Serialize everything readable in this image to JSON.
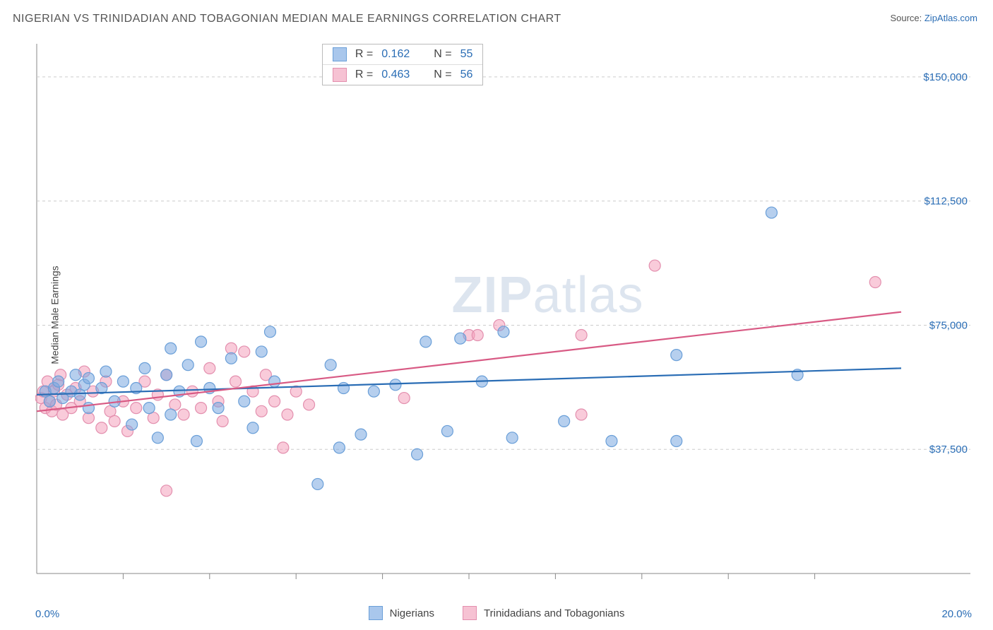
{
  "title": "NIGERIAN VS TRINIDADIAN AND TOBAGONIAN MEDIAN MALE EARNINGS CORRELATION CHART",
  "source_prefix": "Source: ",
  "source_link": "ZipAtlas.com",
  "ylabel": "Median Male Earnings",
  "watermark_zip": "ZIP",
  "watermark_atlas": "atlas",
  "xaxis": {
    "min": 0.0,
    "max": 20.0,
    "label_min": "0.0%",
    "label_max": "20.0%",
    "label_color": "#2a6db5",
    "tick_count": 10,
    "axis_color": "#888888"
  },
  "yaxis": {
    "min": 0,
    "max": 160000,
    "gridlines": [
      37500,
      75000,
      112500,
      150000
    ],
    "labels": [
      "$37,500",
      "$75,000",
      "$112,500",
      "$150,000"
    ],
    "label_color": "#2a6db5",
    "grid_color": "#cccccc",
    "grid_dash": "4,4"
  },
  "series": [
    {
      "name": "Nigerians",
      "color_fill": "rgba(122,168,224,0.55)",
      "color_stroke": "#6a9fd8",
      "swatch_fill": "#a9c7ec",
      "swatch_border": "#6a9fd8",
      "R": "0.162",
      "N": "55",
      "trend": {
        "color": "#2a6db5",
        "width": 2.2,
        "y_at_xmin": 54000,
        "y_at_xmax": 62000
      },
      "points": [
        [
          0.2,
          55000
        ],
        [
          0.3,
          52000
        ],
        [
          0.4,
          56000
        ],
        [
          0.5,
          58000
        ],
        [
          0.6,
          53000
        ],
        [
          0.8,
          55000
        ],
        [
          0.9,
          60000
        ],
        [
          1.0,
          54000
        ],
        [
          1.1,
          57000
        ],
        [
          1.2,
          50000
        ],
        [
          1.2,
          59000
        ],
        [
          1.5,
          56000
        ],
        [
          1.6,
          61000
        ],
        [
          1.8,
          52000
        ],
        [
          2.0,
          58000
        ],
        [
          2.2,
          45000
        ],
        [
          2.3,
          56000
        ],
        [
          2.5,
          62000
        ],
        [
          2.6,
          50000
        ],
        [
          2.8,
          41000
        ],
        [
          3.0,
          60000
        ],
        [
          3.1,
          68000
        ],
        [
          3.1,
          48000
        ],
        [
          3.3,
          55000
        ],
        [
          3.5,
          63000
        ],
        [
          3.7,
          40000
        ],
        [
          3.8,
          70000
        ],
        [
          4.0,
          56000
        ],
        [
          4.2,
          50000
        ],
        [
          4.5,
          65000
        ],
        [
          4.8,
          52000
        ],
        [
          5.0,
          44000
        ],
        [
          5.2,
          67000
        ],
        [
          5.4,
          73000
        ],
        [
          5.5,
          58000
        ],
        [
          6.5,
          27000
        ],
        [
          6.8,
          63000
        ],
        [
          7.0,
          38000
        ],
        [
          7.1,
          56000
        ],
        [
          7.5,
          42000
        ],
        [
          7.8,
          55000
        ],
        [
          8.3,
          57000
        ],
        [
          8.8,
          36000
        ],
        [
          9.0,
          70000
        ],
        [
          9.5,
          43000
        ],
        [
          9.8,
          71000
        ],
        [
          10.3,
          58000
        ],
        [
          10.8,
          73000
        ],
        [
          11.0,
          41000
        ],
        [
          12.2,
          46000
        ],
        [
          13.3,
          40000
        ],
        [
          14.8,
          40000
        ],
        [
          14.8,
          66000
        ],
        [
          17.0,
          109000
        ],
        [
          17.6,
          60000
        ]
      ]
    },
    {
      "name": "Trinidadians and Tobagonians",
      "color_fill": "rgba(244,160,188,0.55)",
      "color_stroke": "#e38fae",
      "swatch_fill": "#f6c2d3",
      "swatch_border": "#e38fae",
      "R": "0.463",
      "N": "56",
      "trend": {
        "color": "#d85a84",
        "width": 2.2,
        "y_at_xmin": 49000,
        "y_at_xmax": 79000
      },
      "points": [
        [
          0.1,
          53000
        ],
        [
          0.15,
          55000
        ],
        [
          0.2,
          50000
        ],
        [
          0.25,
          58000
        ],
        [
          0.3,
          52000
        ],
        [
          0.35,
          49000
        ],
        [
          0.4,
          55000
        ],
        [
          0.45,
          51000
        ],
        [
          0.5,
          57000
        ],
        [
          0.55,
          60000
        ],
        [
          0.6,
          48000
        ],
        [
          0.7,
          54000
        ],
        [
          0.8,
          50000
        ],
        [
          0.9,
          56000
        ],
        [
          1.0,
          52000
        ],
        [
          1.1,
          61000
        ],
        [
          1.2,
          47000
        ],
        [
          1.3,
          55000
        ],
        [
          1.5,
          44000
        ],
        [
          1.6,
          58000
        ],
        [
          1.7,
          49000
        ],
        [
          1.8,
          46000
        ],
        [
          2.0,
          52000
        ],
        [
          2.1,
          43000
        ],
        [
          2.3,
          50000
        ],
        [
          2.5,
          58000
        ],
        [
          2.7,
          47000
        ],
        [
          2.8,
          54000
        ],
        [
          3.0,
          25000
        ],
        [
          3.0,
          60000
        ],
        [
          3.2,
          51000
        ],
        [
          3.4,
          48000
        ],
        [
          3.6,
          55000
        ],
        [
          3.8,
          50000
        ],
        [
          4.0,
          62000
        ],
        [
          4.2,
          52000
        ],
        [
          4.3,
          46000
        ],
        [
          4.5,
          68000
        ],
        [
          4.6,
          58000
        ],
        [
          4.8,
          67000
        ],
        [
          5.0,
          55000
        ],
        [
          5.2,
          49000
        ],
        [
          5.5,
          52000
        ],
        [
          5.7,
          38000
        ],
        [
          5.8,
          48000
        ],
        [
          6.0,
          55000
        ],
        [
          6.3,
          51000
        ],
        [
          8.5,
          53000
        ],
        [
          10.0,
          72000
        ],
        [
          10.2,
          72000
        ],
        [
          10.7,
          75000
        ],
        [
          12.6,
          48000
        ],
        [
          12.6,
          72000
        ],
        [
          14.3,
          93000
        ],
        [
          19.4,
          88000
        ],
        [
          5.3,
          60000
        ]
      ]
    }
  ],
  "marker": {
    "radius": 8,
    "stroke_width": 1.2
  },
  "corr_legend": {
    "labels": {
      "R": "R",
      "N": "N",
      "eq": "="
    }
  },
  "footer_legend_labels": [
    "Nigerians",
    "Trinidadians and Tobagonians"
  ]
}
